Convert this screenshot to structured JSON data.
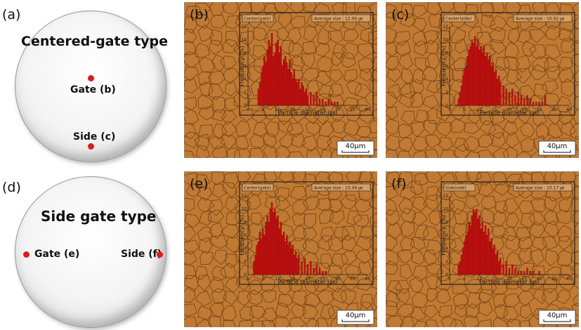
{
  "panel_labels": {
    "a": "(a)",
    "b": "(b)",
    "c": "(c)",
    "d": "(d)",
    "e": "(e)",
    "f": "(f)"
  },
  "diagram_top": {
    "title": "Centered-gate type",
    "gate_label": "Gate (b)",
    "side_label": "Side (c)"
  },
  "diagram_bottom": {
    "title": "Side gate type",
    "gate_label": "Gate (e)",
    "side_label": "Side (f)"
  },
  "colors": {
    "micrograph_bg": "#c07a33",
    "grain_line": "#6e3d16",
    "bar_fill": "#cc1111",
    "bar_edge": "#5a0000",
    "frame": "#222222"
  },
  "scale_bar_text": "40μm",
  "axis_labels": {
    "x": "Particle diameter (㎛)",
    "y": "Frequency (%)"
  },
  "x_ticks": [
    "0",
    "5",
    "10",
    "15",
    "20",
    "25",
    "30",
    "35",
    "40"
  ],
  "y_ticks": [
    "0",
    "2",
    "4",
    "6",
    "8",
    "10",
    "12"
  ],
  "chart_data": [
    {
      "type": "bar",
      "panel": "b",
      "legend": "Center(gate)",
      "average": "Average size : 12.06 ㎛",
      "xlim": [
        0,
        40
      ],
      "ylim": [
        0,
        12
      ],
      "x": [
        3.5,
        4,
        4.5,
        5,
        5.5,
        6,
        6.5,
        7,
        7.5,
        8,
        8.5,
        9,
        9.5,
        10,
        10.5,
        11,
        11.5,
        12,
        12.5,
        13,
        13.5,
        14,
        14.5,
        15,
        15.5,
        16,
        16.5,
        17,
        17.5,
        18,
        18.5,
        19,
        19.5,
        20,
        21,
        22,
        23,
        24,
        25,
        26,
        27,
        28,
        29,
        30
      ],
      "values": [
        2.5,
        3.5,
        5,
        6,
        7.5,
        6.5,
        8.5,
        10,
        9,
        11,
        7.5,
        8,
        9.5,
        10,
        8,
        9,
        6,
        7,
        7.5,
        6.5,
        5.5,
        7,
        5,
        4,
        5.5,
        4,
        3.5,
        4,
        2.5,
        3.5,
        3,
        2,
        2.5,
        1.5,
        2,
        1.5,
        2,
        1,
        1,
        0.5,
        1,
        0.5,
        0.5,
        0.5
      ]
    },
    {
      "type": "bar",
      "panel": "c",
      "legend": "Center(side)",
      "average": "Average size : 10.92 ㎛",
      "xlim": [
        0,
        40
      ],
      "ylim": [
        0,
        12
      ],
      "x": [
        3,
        3.5,
        4,
        4.5,
        5,
        5.5,
        6,
        6.5,
        7,
        7.5,
        8,
        8.5,
        9,
        9.5,
        10,
        10.5,
        11,
        11.5,
        12,
        12.5,
        13,
        13.5,
        14,
        14.5,
        15,
        15.5,
        16,
        16.5,
        17,
        18,
        19,
        20,
        21,
        22,
        23,
        24,
        25,
        26,
        27,
        28,
        29,
        30,
        31,
        32
      ],
      "values": [
        1,
        2,
        3,
        4.5,
        5.5,
        6,
        7.5,
        8.5,
        9,
        10,
        9.5,
        10.5,
        9,
        10,
        8.5,
        9,
        8,
        9,
        7.5,
        8,
        7,
        7.5,
        6,
        6.5,
        5,
        5.5,
        4,
        4.5,
        3.5,
        3,
        2.5,
        2,
        2.5,
        1.5,
        2,
        1.5,
        1,
        1.5,
        1,
        0.5,
        0.5,
        0.5,
        0.5,
        1.5
      ]
    },
    {
      "type": "bar",
      "panel": "e",
      "legend": "Center(gate)",
      "average": "Average size : 10.49 ㎛",
      "xlim": [
        0,
        40
      ],
      "ylim": [
        0,
        12
      ],
      "x": [
        2,
        2.5,
        3,
        3.5,
        4,
        4.5,
        5,
        5.5,
        6,
        6.5,
        7,
        7.5,
        8,
        8.5,
        9,
        9.5,
        10,
        10.5,
        11,
        11.5,
        12,
        12.5,
        13,
        13.5,
        14,
        14.5,
        15,
        15.5,
        16,
        16.5,
        17,
        18,
        19,
        20,
        21,
        22,
        23,
        24,
        25,
        26
      ],
      "values": [
        2,
        3,
        4.5,
        5,
        6.5,
        5.5,
        7,
        6,
        8,
        9,
        8,
        10,
        11,
        9.5,
        10,
        8.5,
        9,
        7,
        8,
        6,
        6.5,
        5,
        6,
        4.5,
        5,
        4,
        4.5,
        3,
        3.5,
        2.5,
        3,
        2,
        2.5,
        1.5,
        2,
        1,
        1.5,
        1,
        0.5,
        0.5
      ]
    },
    {
      "type": "bar",
      "panel": "f",
      "legend": "Side(side)",
      "average": "Average size : 10.17 ㎛",
      "xlim": [
        0,
        40
      ],
      "ylim": [
        0,
        12
      ],
      "x": [
        3,
        3.5,
        4,
        4.5,
        5,
        5.5,
        6,
        6.5,
        7,
        7.5,
        8,
        8.5,
        9,
        9.5,
        10,
        10.5,
        11,
        11.5,
        12,
        12.5,
        13,
        13.5,
        14,
        14.5,
        15,
        15.5,
        16,
        16.5,
        17,
        18,
        19,
        20,
        21,
        22,
        23,
        24,
        25,
        26,
        27,
        28,
        30
      ],
      "values": [
        1.5,
        2,
        3,
        4,
        5,
        6,
        6.5,
        8,
        7.5,
        9,
        10,
        9.5,
        10,
        8.5,
        9,
        7,
        8,
        6.5,
        7.5,
        6,
        7,
        5,
        5.5,
        4,
        4.5,
        3,
        3.5,
        2,
        2.5,
        1.5,
        2,
        1,
        1.5,
        1,
        0.5,
        0.5,
        0.5,
        1,
        0.5,
        0.5,
        0.5
      ]
    }
  ]
}
